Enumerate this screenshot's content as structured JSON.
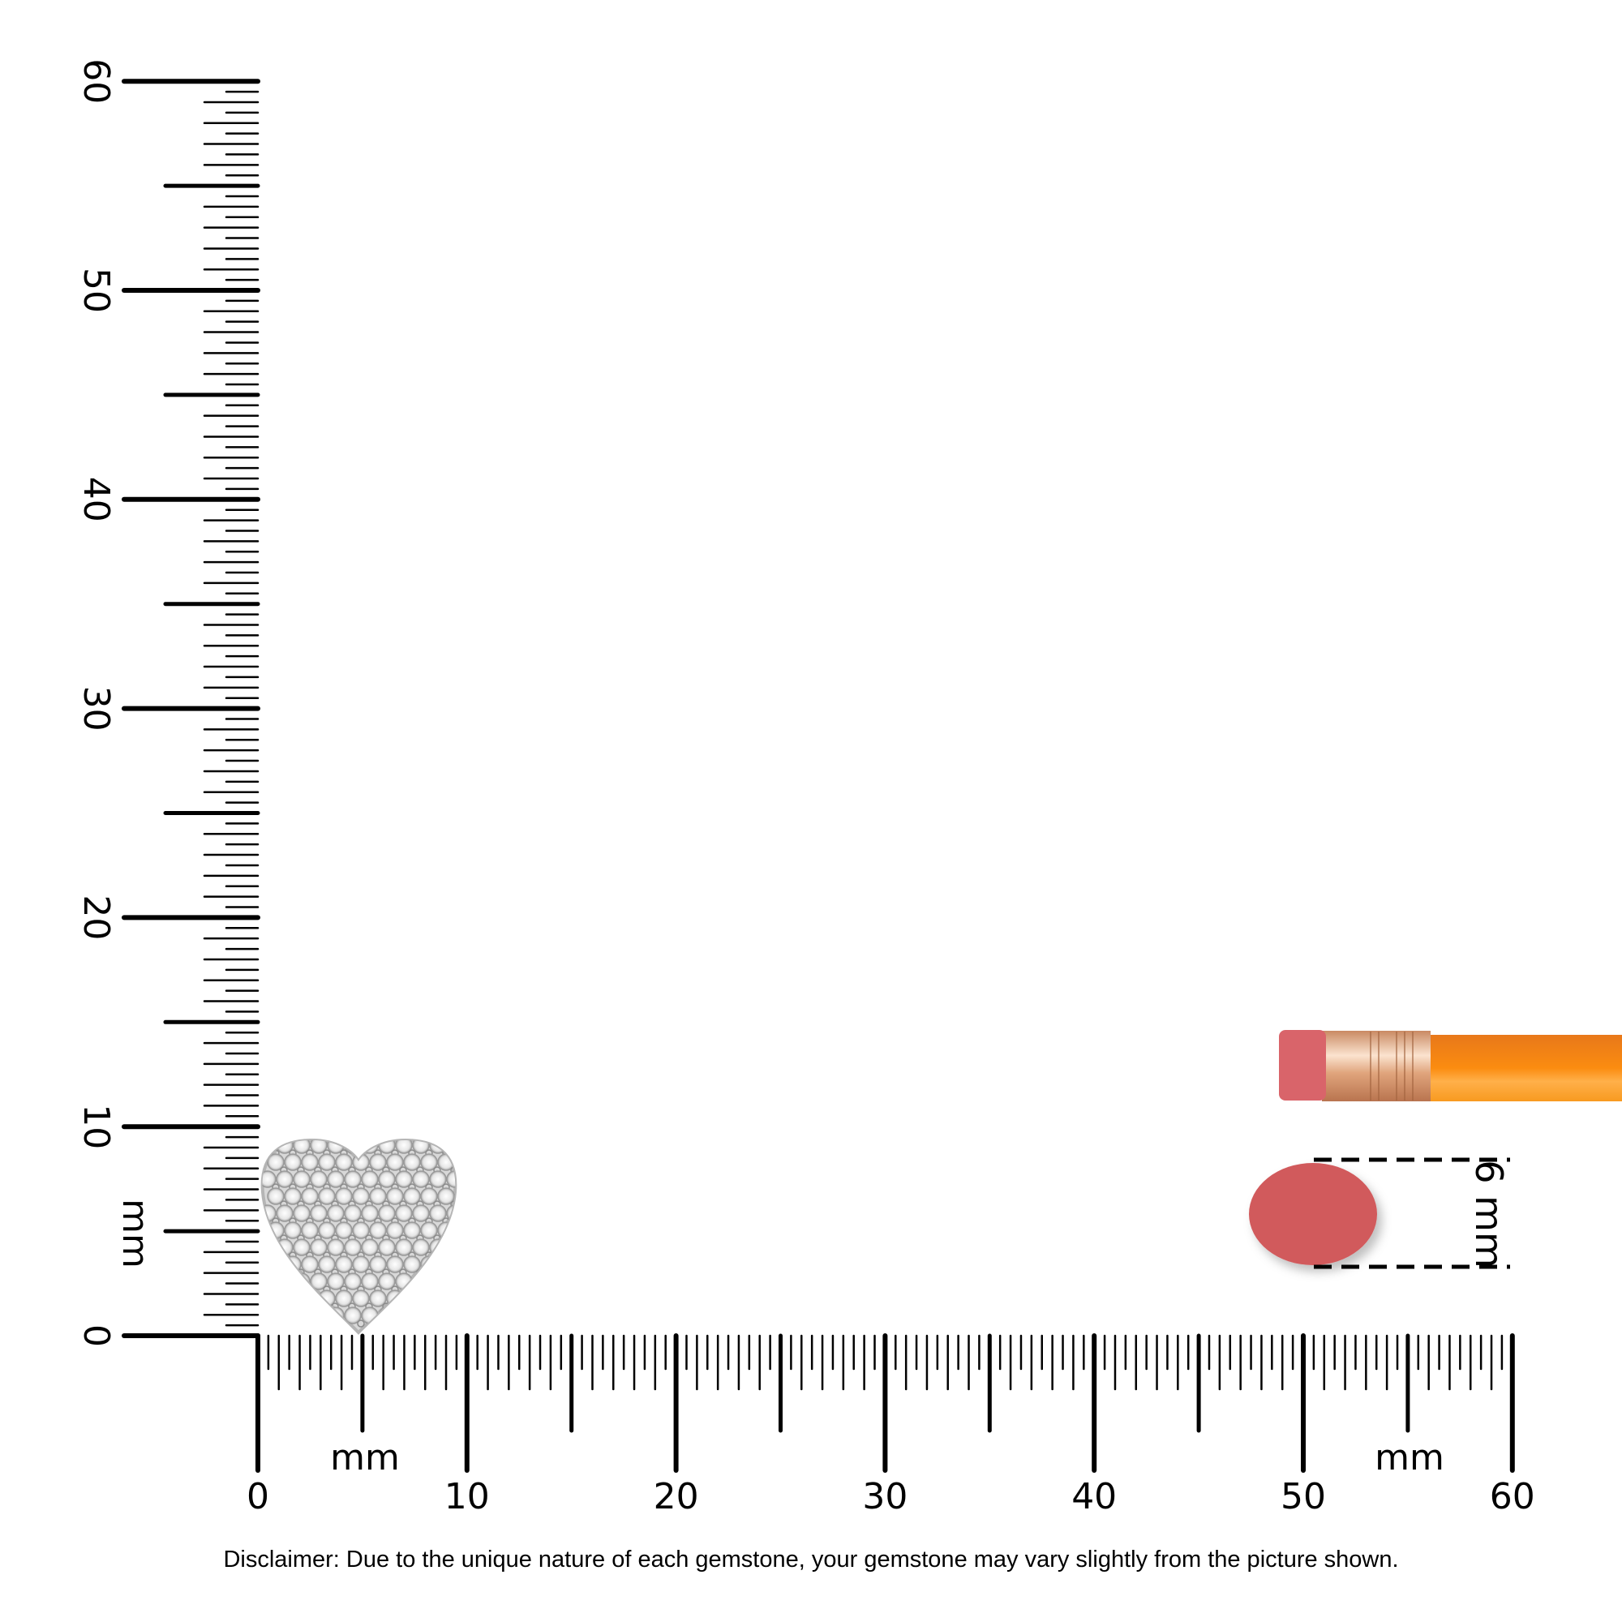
{
  "ruler": {
    "unit_label": "mm",
    "min": 0,
    "max": 60,
    "major_step": 10,
    "minor_step": 0.5,
    "horizontal_labels": [
      "0",
      "10",
      "20",
      "30",
      "40",
      "50",
      "60"
    ],
    "vertical_labels": [
      "0",
      "10",
      "20",
      "30",
      "40",
      "50",
      "60"
    ]
  },
  "pencil_eraser": {
    "dimension_label": "6 mm",
    "color": "#d15a5c"
  },
  "pencil": {
    "eraser_color": "#d9646a",
    "ferrule_color": "#e8b08a",
    "body_color": "#fb8c14"
  },
  "heart_pendant": {
    "metal_color": "#d8d8d8",
    "stone_color": "#f2f2f2"
  },
  "disclaimer": "Disclaimer: Due to the unique nature of each gemstone, your gemstone may vary slightly from the picture shown."
}
